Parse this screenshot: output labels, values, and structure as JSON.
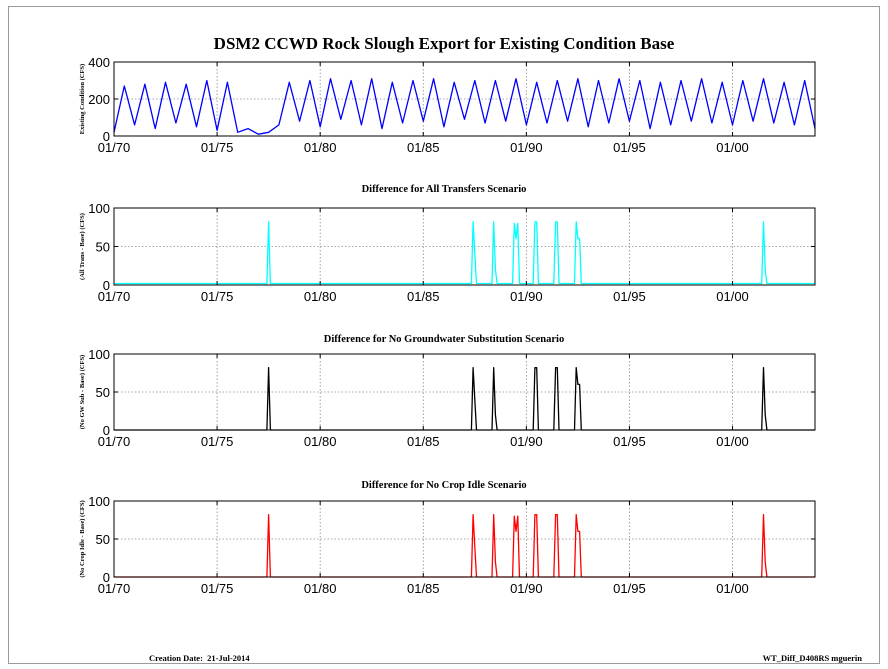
{
  "page": {
    "title": "DSM2 CCWD Rock Slough Export for Existing Condition Base",
    "footer_left": "Creation Date:  21-Jul-2014",
    "footer_right": "WT_Diff_D408RS mguerin"
  },
  "chart_data": [
    {
      "type": "line",
      "title": "",
      "ylabel": "Existing Condition (CFS)",
      "xlim": [
        "01/70",
        "01/04"
      ],
      "ylim": [
        0,
        400
      ],
      "yticks": [
        0,
        200,
        400
      ],
      "xticks": [
        "01/70",
        "01/75",
        "01/80",
        "01/85",
        "01/90",
        "01/95",
        "01/00"
      ],
      "grid": true,
      "color": "#0000ff",
      "series": [
        {
          "x": [
            "01/70",
            "07/70",
            "01/71",
            "07/71",
            "01/72",
            "07/72",
            "01/73",
            "07/73",
            "01/74",
            "07/74",
            "01/75",
            "07/75",
            "01/76",
            "07/76",
            "01/77",
            "07/77",
            "01/78",
            "07/78",
            "01/79",
            "07/79",
            "01/80",
            "07/80",
            "01/81",
            "07/81",
            "01/82",
            "07/82",
            "01/83",
            "07/83",
            "01/84",
            "07/84",
            "01/85",
            "07/85",
            "01/86",
            "07/86",
            "01/87",
            "07/87",
            "01/88",
            "07/88",
            "01/89",
            "07/89",
            "01/90",
            "07/90",
            "01/91",
            "07/91",
            "01/92",
            "07/92",
            "01/93",
            "07/93",
            "01/94",
            "07/94",
            "01/95",
            "07/95",
            "01/96",
            "07/96",
            "01/97",
            "07/97",
            "01/98",
            "07/98",
            "01/99",
            "07/99",
            "01/00",
            "07/00",
            "01/01",
            "07/01",
            "01/02",
            "07/02",
            "01/03",
            "07/03",
            "01/04"
          ],
          "values": [
            20,
            270,
            60,
            280,
            40,
            290,
            70,
            280,
            50,
            300,
            30,
            290,
            20,
            40,
            10,
            20,
            60,
            290,
            80,
            300,
            50,
            310,
            90,
            300,
            60,
            310,
            40,
            290,
            70,
            300,
            80,
            310,
            50,
            290,
            90,
            300,
            70,
            300,
            80,
            310,
            60,
            290,
            70,
            300,
            80,
            310,
            50,
            300,
            70,
            310,
            80,
            300,
            40,
            290,
            60,
            300,
            80,
            310,
            70,
            290,
            60,
            300,
            80,
            310,
            70,
            290,
            60,
            300,
            40
          ]
        }
      ]
    },
    {
      "type": "line",
      "title": "Difference for All Transfers Scenario",
      "ylabel": "(All Trans - Base) (CFS)",
      "xlim": [
        "01/70",
        "01/04"
      ],
      "ylim": [
        0,
        100
      ],
      "yticks": [
        0,
        50,
        100
      ],
      "xticks": [
        "01/70",
        "01/75",
        "01/80",
        "01/85",
        "01/90",
        "01/95",
        "01/00"
      ],
      "grid": true,
      "color": "#00ffff",
      "series": [
        {
          "x": [
            "01/70",
            "06/77",
            "07/77",
            "08/77",
            "05/87",
            "06/87",
            "07/87",
            "08/87",
            "05/88",
            "06/88",
            "07/88",
            "08/88",
            "05/89",
            "06/89",
            "07/89",
            "08/89",
            "09/89",
            "05/90",
            "06/90",
            "07/90",
            "08/90",
            "05/91",
            "06/91",
            "07/91",
            "08/91",
            "05/92",
            "06/92",
            "07/92",
            "08/92",
            "09/92",
            "06/01",
            "07/01",
            "08/01",
            "09/01",
            "01/04"
          ],
          "values": [
            2,
            2,
            82,
            2,
            2,
            82,
            40,
            2,
            2,
            82,
            20,
            2,
            2,
            80,
            60,
            80,
            2,
            2,
            82,
            82,
            2,
            2,
            82,
            82,
            2,
            2,
            82,
            60,
            60,
            2,
            2,
            82,
            20,
            2,
            2
          ]
        }
      ]
    },
    {
      "type": "line",
      "title": "Difference for No Groundwater Substitution Scenario",
      "ylabel": "(No GW Sub - Base) (CFS)",
      "xlim": [
        "01/70",
        "01/04"
      ],
      "ylim": [
        0,
        100
      ],
      "yticks": [
        0,
        50,
        100
      ],
      "xticks": [
        "01/70",
        "01/75",
        "01/80",
        "01/85",
        "01/90",
        "01/95",
        "01/00"
      ],
      "grid": true,
      "color": "#000000",
      "series": [
        {
          "x": [
            "01/70",
            "06/77",
            "07/77",
            "08/77",
            "05/87",
            "06/87",
            "07/87",
            "08/87",
            "05/88",
            "06/88",
            "07/88",
            "08/88",
            "05/90",
            "06/90",
            "07/90",
            "08/90",
            "05/91",
            "06/91",
            "07/91",
            "08/91",
            "05/92",
            "06/92",
            "07/92",
            "08/92",
            "09/92",
            "06/01",
            "07/01",
            "08/01",
            "09/01",
            "01/04"
          ],
          "values": [
            0,
            0,
            82,
            0,
            0,
            82,
            40,
            0,
            0,
            82,
            20,
            0,
            0,
            82,
            82,
            0,
            0,
            82,
            82,
            0,
            0,
            82,
            60,
            60,
            0,
            0,
            82,
            20,
            0,
            0
          ]
        }
      ]
    },
    {
      "type": "line",
      "title": "Difference for No Crop Idle Scenario",
      "ylabel": "(No Crop Idle - Base) (CFS)",
      "xlim": [
        "01/70",
        "01/04"
      ],
      "ylim": [
        0,
        100
      ],
      "yticks": [
        0,
        50,
        100
      ],
      "xticks": [
        "01/70",
        "01/75",
        "01/80",
        "01/85",
        "01/90",
        "01/95",
        "01/00"
      ],
      "grid": true,
      "color": "#ff0000",
      "series": [
        {
          "x": [
            "01/70",
            "06/77",
            "07/77",
            "08/77",
            "05/87",
            "06/87",
            "07/87",
            "08/87",
            "05/88",
            "06/88",
            "07/88",
            "08/88",
            "05/89",
            "06/89",
            "07/89",
            "08/89",
            "09/89",
            "05/90",
            "06/90",
            "07/90",
            "08/90",
            "05/91",
            "06/91",
            "07/91",
            "08/91",
            "05/92",
            "06/92",
            "07/92",
            "08/92",
            "09/92",
            "06/01",
            "07/01",
            "08/01",
            "09/01",
            "01/04"
          ],
          "values": [
            0,
            0,
            82,
            0,
            0,
            82,
            40,
            0,
            0,
            82,
            20,
            0,
            0,
            80,
            60,
            80,
            0,
            0,
            82,
            82,
            0,
            0,
            82,
            82,
            0,
            0,
            82,
            60,
            60,
            0,
            0,
            82,
            20,
            0,
            0
          ]
        }
      ]
    }
  ]
}
